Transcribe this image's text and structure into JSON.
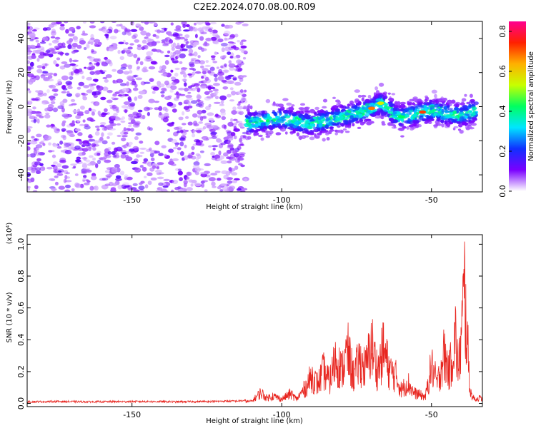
{
  "figure": {
    "title": "C2E2.2024.070.08.00.R09"
  },
  "chart_data": [
    {
      "type": "heatmap",
      "title": "C2E2.2024.070.08.00.R09",
      "xlabel": "Height of straight line (km)",
      "ylabel": "Frequency (Hz)",
      "xlim": [
        -185,
        -33
      ],
      "ylim": [
        -50,
        50
      ],
      "xticks": [
        -150,
        -100,
        -50
      ],
      "yticks": [
        -40,
        -20,
        0,
        20,
        40
      ],
      "noise_region_x": [
        -185,
        -112
      ],
      "ridge": {
        "x": [
          -112,
          -105,
          -100,
          -95,
          -90,
          -85,
          -80,
          -75,
          -70,
          -67,
          -65,
          -62,
          -60,
          -55,
          -50,
          -45,
          -40,
          -35
        ],
        "y": [
          -10,
          -8,
          -7,
          -9,
          -10,
          -8,
          -6,
          -4,
          -1,
          2,
          0,
          -5,
          -6,
          -4,
          -2,
          -4,
          -5,
          -2
        ]
      },
      "colorbar": {
        "label": "Normalized spectral amplitude",
        "ticks": [
          0.0,
          0.2,
          0.4,
          0.6,
          0.8
        ],
        "range": [
          0,
          0.85
        ],
        "colors": [
          "#ffffff",
          "#7a00ff",
          "#1030ff",
          "#00e6ff",
          "#00ff60",
          "#c8ff00",
          "#ffb000",
          "#ff2000",
          "#ff0090"
        ]
      }
    },
    {
      "type": "line",
      "xlabel": "Height of straight line (km)",
      "ylabel": "SNR (10 * v/v)",
      "y_multiplier": "(x10⁴)",
      "xlim": [
        -185,
        -33
      ],
      "ylim": [
        -0.02,
        1.06
      ],
      "xticks": [
        -150,
        -100,
        -50
      ],
      "yticks": [
        0.0,
        0.2,
        0.4,
        0.6,
        0.8,
        1.0
      ],
      "series": [
        {
          "color": "#e8251f",
          "x": [
            -185,
            -175,
            -165,
            -155,
            -145,
            -135,
            -125,
            -115,
            -110,
            -107,
            -105,
            -103,
            -100,
            -97,
            -95,
            -92,
            -90,
            -88,
            -86,
            -84,
            -82,
            -80,
            -78,
            -76,
            -74,
            -72,
            -70,
            -68,
            -66,
            -64,
            -62,
            -60,
            -58,
            -56,
            -54,
            -52,
            -50,
            -48,
            -46,
            -44,
            -42,
            -41,
            -40,
            -39,
            -38,
            -37,
            -36,
            -35,
            -34,
            -33
          ],
          "y": [
            0.01,
            0.012,
            0.01,
            0.011,
            0.012,
            0.01,
            0.012,
            0.015,
            0.02,
            0.1,
            0.05,
            0.07,
            0.04,
            0.09,
            0.04,
            0.15,
            0.25,
            0.18,
            0.3,
            0.2,
            0.42,
            0.3,
            0.48,
            0.25,
            0.4,
            0.32,
            0.54,
            0.3,
            0.5,
            0.3,
            0.26,
            0.12,
            0.2,
            0.1,
            0.08,
            0.06,
            0.35,
            0.18,
            0.45,
            0.3,
            0.62,
            0.3,
            0.62,
            1.05,
            0.55,
            0.1,
            0.05,
            0.04,
            0.05,
            0.04
          ]
        }
      ]
    }
  ]
}
